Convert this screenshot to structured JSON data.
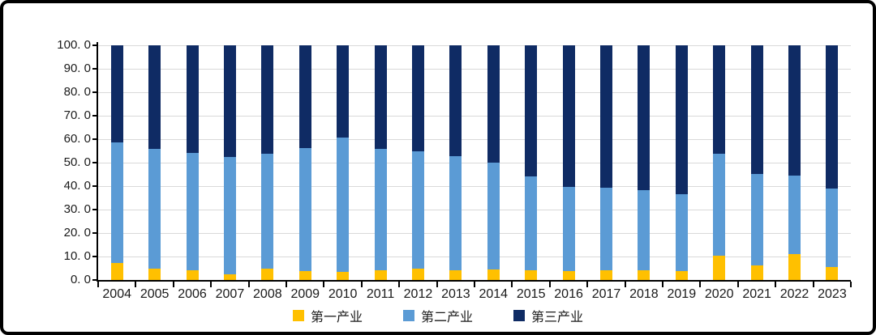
{
  "chart_data": {
    "type": "bar",
    "stacked": true,
    "title": "",
    "xlabel": "",
    "ylabel": "",
    "categories": [
      "2004",
      "2005",
      "2006",
      "2007",
      "2008",
      "2009",
      "2010",
      "2011",
      "2012",
      "2013",
      "2014",
      "2015",
      "2016",
      "2017",
      "2018",
      "2019",
      "2020",
      "2021",
      "2022",
      "2023"
    ],
    "series": [
      {
        "name": "第一产业",
        "color": "#FFC000",
        "values": [
          7.2,
          4.8,
          4.0,
          2.5,
          4.7,
          3.8,
          3.5,
          4.1,
          4.7,
          4.2,
          4.4,
          4.0,
          3.9,
          4.1,
          4.0,
          3.9,
          10.3,
          6.2,
          10.9,
          5.5
        ]
      },
      {
        "name": "第二产业",
        "color": "#5B9BD5",
        "values": [
          51.6,
          50.9,
          50.0,
          50.0,
          49.2,
          52.3,
          57.3,
          51.9,
          50.1,
          48.4,
          45.5,
          40.2,
          35.8,
          35.1,
          34.2,
          32.5,
          43.4,
          39.1,
          33.7,
          33.6
        ]
      },
      {
        "name": "第三产业",
        "color": "#0F2B64",
        "values": [
          41.2,
          44.3,
          46.0,
          47.5,
          46.1,
          43.9,
          39.2,
          44.0,
          45.2,
          47.4,
          50.1,
          55.8,
          60.3,
          60.8,
          61.8,
          63.6,
          46.3,
          54.7,
          55.4,
          60.9
        ]
      }
    ],
    "ylim": [
      0,
      100
    ],
    "ytick_step": 10,
    "ytick_labels": [
      "100. 0",
      "90. 0",
      "80. 0",
      "70. 0",
      "60. 0",
      "50. 0",
      "40. 0",
      "30. 0",
      "20. 0",
      "10. 0",
      "0. 0"
    ],
    "grid": "horizontal",
    "legend_position": "bottom"
  },
  "colors": {
    "gridline": "#d9d9d9",
    "axis": "#000000",
    "tick_text": "#1a1a1a",
    "background": "#ffffff",
    "frame_border": "#000000"
  }
}
